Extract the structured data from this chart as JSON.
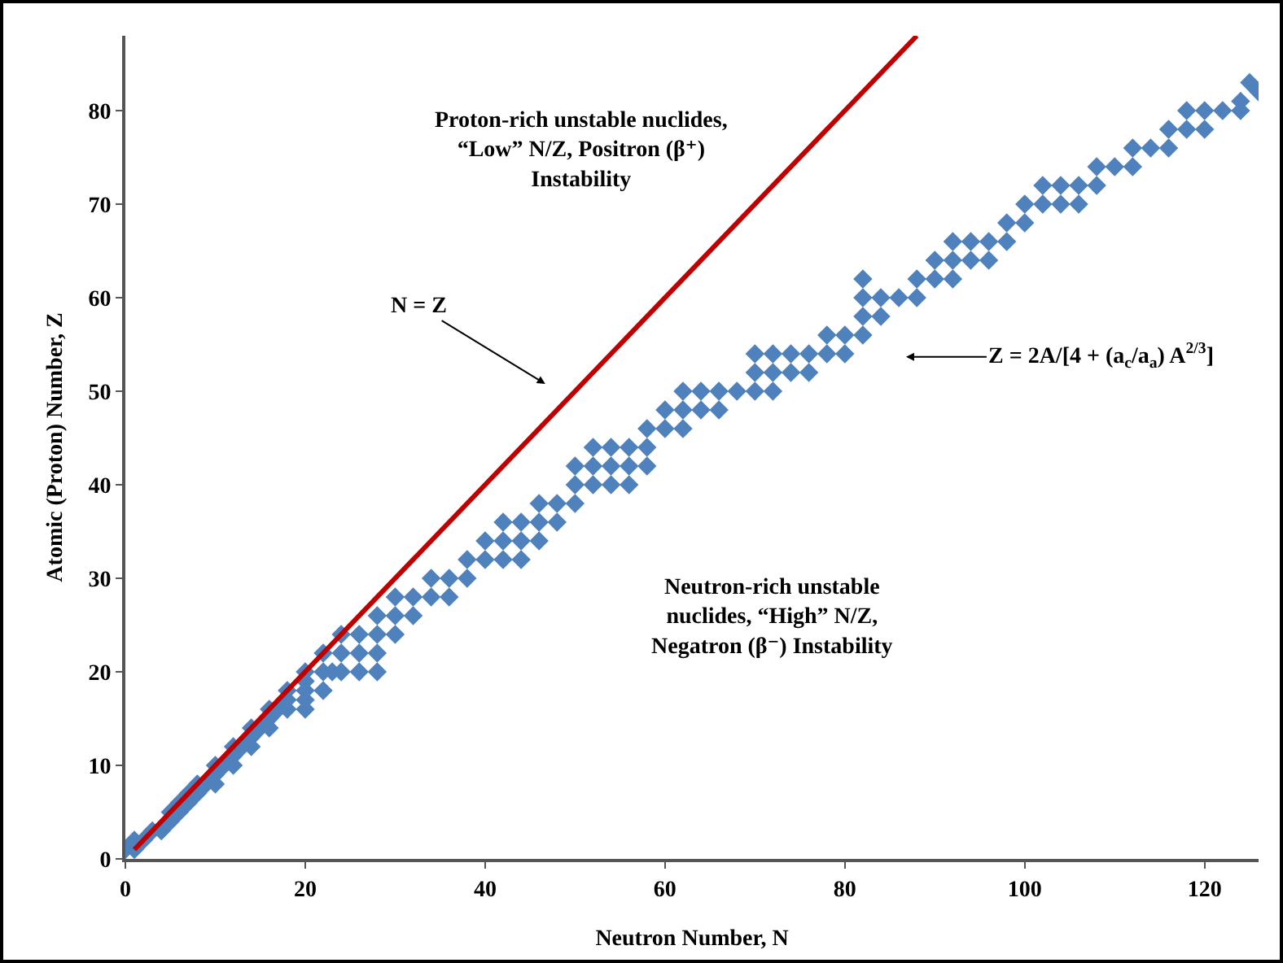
{
  "chart_data": {
    "type": "scatter",
    "xlabel": "Neutron Number, N",
    "ylabel": "Atomic (Proton) Number, Z",
    "xlim": [
      0,
      126
    ],
    "ylim": [
      0,
      88
    ],
    "xticks": [
      0,
      20,
      40,
      60,
      80,
      100,
      120
    ],
    "yticks": [
      0,
      10,
      20,
      30,
      40,
      50,
      60,
      70,
      80
    ],
    "grid": false,
    "marker": "diamond",
    "series": [
      {
        "color": "#4f81bd",
        "x": [
          0,
          1,
          1,
          2,
          3,
          4,
          5,
          5,
          6,
          6,
          7,
          7,
          8,
          8,
          9,
          10,
          10,
          10,
          11,
          12,
          12,
          12,
          13,
          14,
          14,
          14,
          15,
          16,
          16,
          16,
          17,
          18,
          18,
          20,
          18,
          20,
          20,
          20,
          22,
          20,
          22,
          23,
          24,
          26,
          28,
          22,
          24,
          26,
          28,
          24,
          26,
          28,
          30,
          28,
          30,
          32,
          30,
          32,
          34,
          36,
          34,
          36,
          38,
          38,
          40,
          42,
          44,
          40,
          42,
          44,
          46,
          42,
          44,
          46,
          48,
          46,
          48,
          50,
          50,
          52,
          54,
          56,
          50,
          52,
          54,
          56,
          58,
          52,
          54,
          56,
          58,
          58,
          60,
          62,
          60,
          62,
          64,
          66,
          62,
          64,
          66,
          68,
          70,
          72,
          70,
          72,
          74,
          76,
          70,
          72,
          74,
          76,
          78,
          80,
          78,
          80,
          82,
          82,
          84,
          82,
          84,
          86,
          88,
          82,
          88,
          90,
          92,
          90,
          92,
          94,
          96,
          92,
          94,
          96,
          98,
          98,
          100,
          100,
          102,
          104,
          106,
          102,
          104,
          106,
          108,
          108,
          110,
          112,
          112,
          114,
          116,
          116,
          118,
          120,
          118,
          120,
          122,
          124,
          124,
          126,
          125
        ],
        "values": [
          1,
          1,
          2,
          2,
          3,
          3,
          4,
          5,
          5,
          6,
          6,
          7,
          7,
          8,
          8,
          8,
          9,
          10,
          10,
          10,
          11,
          12,
          12,
          12,
          13,
          14,
          14,
          14,
          15,
          16,
          16,
          16,
          17,
          16,
          18,
          17,
          18,
          19,
          18,
          20,
          20,
          20,
          20,
          20,
          20,
          22,
          22,
          22,
          22,
          24,
          24,
          24,
          24,
          26,
          26,
          26,
          28,
          28,
          28,
          28,
          30,
          30,
          30,
          32,
          32,
          32,
          32,
          34,
          34,
          34,
          34,
          36,
          36,
          36,
          36,
          38,
          38,
          38,
          40,
          40,
          40,
          40,
          42,
          42,
          42,
          42,
          42,
          44,
          44,
          44,
          44,
          46,
          46,
          46,
          48,
          48,
          48,
          48,
          50,
          50,
          50,
          50,
          50,
          50,
          52,
          52,
          52,
          52,
          54,
          54,
          54,
          54,
          54,
          54,
          56,
          56,
          56,
          58,
          58,
          60,
          60,
          60,
          60,
          62,
          62,
          62,
          62,
          64,
          64,
          64,
          64,
          66,
          66,
          66,
          66,
          68,
          68,
          70,
          70,
          70,
          70,
          72,
          72,
          72,
          72,
          74,
          74,
          74,
          76,
          76,
          76,
          78,
          78,
          78,
          80,
          80,
          80,
          80,
          81,
          82,
          83
        ]
      },
      {
        "type": "line",
        "color": "#c00000",
        "line_style": "solid",
        "marker": "none",
        "x": [
          1,
          88
        ],
        "values": [
          1,
          88
        ]
      }
    ],
    "annotations": [
      "Proton-rich unstable nuclides,\n“Low” N/Z, Positron (β⁺)\nInstability",
      "N = Z",
      "Z = 2A/[4 + (a$_{c}$/a$_{a}$) A$^{2/3}$]",
      "Neutron-rich unstable\nnuclides, “High” N/Z,\nNegatron (β⁻) Instability"
    ]
  }
}
